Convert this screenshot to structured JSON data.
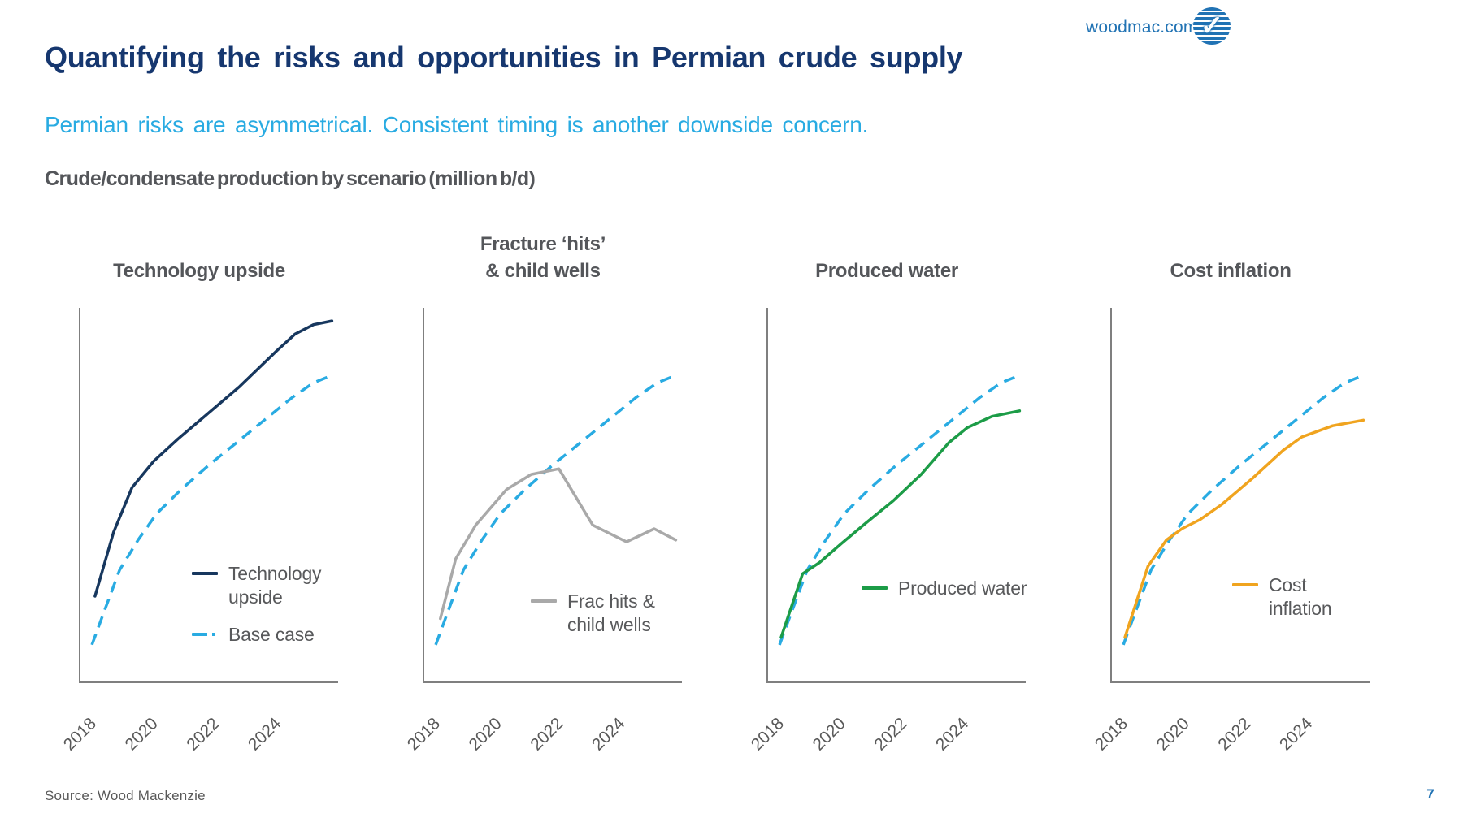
{
  "header": {
    "site": "woodmac.com",
    "logo_name": "wood-mackenzie-logo"
  },
  "title": "Quantifying the risks and opportunities in Permian crude supply",
  "subtitle": "Permian risks are asymmetrical. Consistent timing is another downside concern.",
  "section_heading": "Crude/condensate production by scenario (million b/d)",
  "footer": {
    "source": "Source: Wood Mackenzie",
    "page_number": "7"
  },
  "colors": {
    "title_navy": "#16376f",
    "subtitle_blue": "#29abe2",
    "heading_gray": "#54565a",
    "axis_gray": "#7f7f7f",
    "tech_upside_navy": "#17375e",
    "base_case_blue": "#29abe2",
    "frac_hits_gray": "#a9a9a9",
    "produced_water_green": "#1c9c47",
    "cost_inflation_orange": "#f0a41f",
    "link_blue": "#2173b4"
  },
  "chart_data": [
    {
      "type": "line",
      "title": "Technology upside",
      "x_ticks": [
        "2018",
        "2020",
        "2022",
        "2024"
      ],
      "x_range": [
        2018,
        2026
      ],
      "ylabel": "relative production (axis unlabeled, million b/d)",
      "grid": false,
      "series": [
        {
          "name": "Technology upside",
          "color": "#17375e",
          "style": "solid",
          "points": [
            [
              2018.3,
              23
            ],
            [
              2018.9,
              40
            ],
            [
              2019.5,
              52
            ],
            [
              2020.2,
              59
            ],
            [
              2021.0,
              65
            ],
            [
              2022.0,
              72
            ],
            [
              2023.0,
              79
            ],
            [
              2024.2,
              88.5
            ],
            [
              2024.8,
              93
            ],
            [
              2025.4,
              95.5
            ],
            [
              2026.0,
              96.5
            ]
          ]
        },
        {
          "name": "Base case",
          "color": "#29abe2",
          "style": "dashed",
          "points": [
            [
              2018.2,
              10
            ],
            [
              2018.6,
              19
            ],
            [
              2019.1,
              30
            ],
            [
              2019.7,
              38
            ],
            [
              2020.3,
              45
            ],
            [
              2021.1,
              51.5
            ],
            [
              2022.0,
              58
            ],
            [
              2022.9,
              64
            ],
            [
              2023.8,
              70
            ],
            [
              2024.7,
              76
            ],
            [
              2025.4,
              80
            ],
            [
              2026.0,
              82
            ]
          ]
        }
      ],
      "legend": [
        {
          "label": "Technology upside",
          "color": "#17375e",
          "style": "solid"
        },
        {
          "label": "Base case",
          "color": "#29abe2",
          "style": "dashed"
        }
      ]
    },
    {
      "type": "line",
      "title": "Fracture ‘hits’\n& child wells",
      "x_ticks": [
        "2018",
        "2020",
        "2022",
        "2024"
      ],
      "x_range": [
        2018,
        2026
      ],
      "ylabel": "relative production (axis unlabeled, million b/d)",
      "grid": false,
      "series": [
        {
          "name": "Frac hits & child wells",
          "color": "#a9a9a9",
          "style": "solid",
          "points": [
            [
              2018.35,
              17
            ],
            [
              2018.85,
              33
            ],
            [
              2019.5,
              42
            ],
            [
              2020.5,
              51.5
            ],
            [
              2021.3,
              55.5
            ],
            [
              2022.2,
              57
            ],
            [
              2023.3,
              42
            ],
            [
              2024.4,
              37.5
            ],
            [
              2025.3,
              41
            ],
            [
              2026.0,
              38
            ]
          ]
        },
        {
          "name": "Base case",
          "color": "#29abe2",
          "style": "dashed",
          "points": [
            [
              2018.2,
              10
            ],
            [
              2018.6,
              19
            ],
            [
              2019.1,
              30
            ],
            [
              2019.7,
              38
            ],
            [
              2020.3,
              45
            ],
            [
              2021.1,
              51.5
            ],
            [
              2022.0,
              58
            ],
            [
              2022.9,
              64
            ],
            [
              2023.8,
              70
            ],
            [
              2024.7,
              76
            ],
            [
              2025.4,
              80
            ],
            [
              2026.0,
              82
            ]
          ]
        }
      ],
      "legend": [
        {
          "label": "Frac hits & child wells",
          "color": "#a9a9a9",
          "style": "solid"
        }
      ]
    },
    {
      "type": "line",
      "title": "Produced water",
      "x_ticks": [
        "2018",
        "2020",
        "2022",
        "2024"
      ],
      "x_range": [
        2018,
        2026
      ],
      "ylabel": "relative production (axis unlabeled, million b/d)",
      "grid": false,
      "series": [
        {
          "name": "Produced water",
          "color": "#1c9c47",
          "style": "solid",
          "points": [
            [
              2018.25,
              12
            ],
            [
              2018.95,
              29
            ],
            [
              2019.5,
              32
            ],
            [
              2020.2,
              37
            ],
            [
              2021.0,
              42.5
            ],
            [
              2021.9,
              48.5
            ],
            [
              2022.8,
              55.5
            ],
            [
              2023.7,
              64
            ],
            [
              2024.3,
              68
            ],
            [
              2025.1,
              71
            ],
            [
              2026.0,
              72.5
            ]
          ]
        },
        {
          "name": "Base case",
          "color": "#29abe2",
          "style": "dashed",
          "points": [
            [
              2018.2,
              10
            ],
            [
              2018.6,
              19
            ],
            [
              2019.1,
              30
            ],
            [
              2019.7,
              38
            ],
            [
              2020.3,
              45
            ],
            [
              2021.1,
              51.5
            ],
            [
              2022.0,
              58
            ],
            [
              2022.9,
              64
            ],
            [
              2023.8,
              70
            ],
            [
              2024.7,
              76
            ],
            [
              2025.4,
              80
            ],
            [
              2026.0,
              82
            ]
          ]
        }
      ],
      "legend": [
        {
          "label": "Produced water",
          "color": "#1c9c47",
          "style": "solid"
        }
      ]
    },
    {
      "type": "line",
      "title": "Cost inflation",
      "x_ticks": [
        "2018",
        "2020",
        "2022",
        "2024"
      ],
      "x_range": [
        2018,
        2026
      ],
      "ylabel": "relative production (axis unlabeled, million b/d)",
      "grid": false,
      "series": [
        {
          "name": "Cost inflation",
          "color": "#f0a41f",
          "style": "solid",
          "points": [
            [
              2018.25,
              12
            ],
            [
              2019.0,
              31
            ],
            [
              2019.6,
              38
            ],
            [
              2020.1,
              41
            ],
            [
              2020.7,
              43.5
            ],
            [
              2021.4,
              47.5
            ],
            [
              2022.4,
              54.5
            ],
            [
              2023.4,
              62
            ],
            [
              2024.0,
              65.5
            ],
            [
              2025.0,
              68.5
            ],
            [
              2026.0,
              70
            ]
          ]
        },
        {
          "name": "Base case",
          "color": "#29abe2",
          "style": "dashed",
          "points": [
            [
              2018.2,
              10
            ],
            [
              2018.6,
              19
            ],
            [
              2019.1,
              30
            ],
            [
              2019.7,
              38
            ],
            [
              2020.3,
              45
            ],
            [
              2021.1,
              51.5
            ],
            [
              2022.0,
              58
            ],
            [
              2022.9,
              64
            ],
            [
              2023.8,
              70
            ],
            [
              2024.7,
              76
            ],
            [
              2025.4,
              80
            ],
            [
              2026.0,
              82
            ]
          ]
        }
      ],
      "legend": [
        {
          "label": "Cost inflation",
          "color": "#f0a41f",
          "style": "solid"
        }
      ]
    }
  ]
}
